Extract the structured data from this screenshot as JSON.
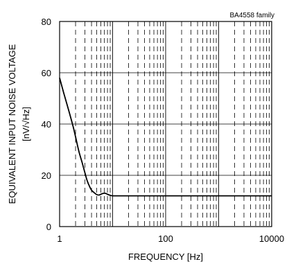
{
  "chart_data": {
    "type": "line",
    "title": "",
    "family_label": "BA4558  family",
    "xlabel": "FREQUENCY [Hz]",
    "ylabel": "EQUIVALENT INPUT NOISE VOLTAGE",
    "ylabel_unit": "[nV/√Hz]",
    "x_scale": "log",
    "xlim": [
      1,
      10000
    ],
    "ylim": [
      0,
      80
    ],
    "x_ticks": [
      1,
      100,
      10000
    ],
    "x_tick_labels": [
      "1",
      "100",
      "10000"
    ],
    "y_ticks": [
      0,
      20,
      40,
      60,
      80
    ],
    "y_tick_labels": [
      "0",
      "20",
      "40",
      "60",
      "80"
    ],
    "grid": {
      "major": true,
      "minor_x_dashed": true
    },
    "series": [
      {
        "x": [
          1,
          1.2,
          1.5,
          1.8,
          2,
          2.3,
          2.7,
          3,
          3.3,
          3.7,
          4,
          4.5,
          5,
          5.5,
          6,
          6.5,
          7,
          7.5,
          8,
          9,
          10,
          12,
          15,
          20,
          30,
          50,
          100,
          200,
          500,
          1000,
          2000,
          5000,
          10000
        ],
        "values": [
          58,
          52,
          45,
          39,
          35,
          29.5,
          24.5,
          21,
          18,
          15.5,
          14.2,
          13.2,
          12.5,
          12.3,
          12.6,
          12.9,
          13,
          12.9,
          12.6,
          12.2,
          12,
          12,
          12,
          12,
          12,
          12,
          12,
          12,
          12,
          12,
          12,
          12,
          12
        ]
      }
    ],
    "color": "#000000"
  }
}
